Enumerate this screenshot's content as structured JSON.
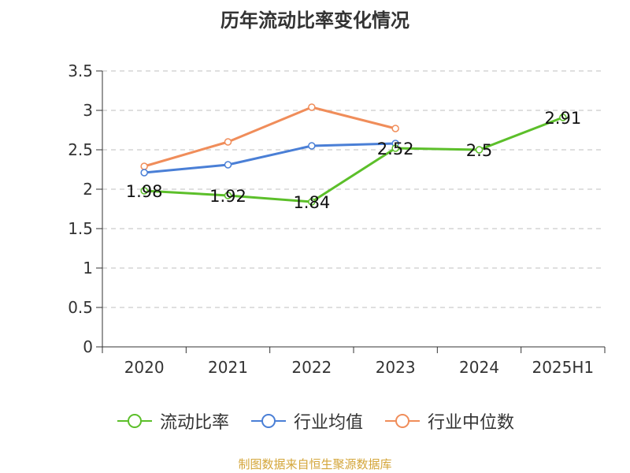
{
  "title": "历年流动比率变化情况",
  "source": "制图数据来自恒生聚源数据库",
  "colors": {
    "current_ratio": "#5cbf2a",
    "industry_avg": "#4a7fd6",
    "industry_median": "#f08d5a",
    "axis": "#333333",
    "grid": "#cccccc"
  },
  "chart_data": {
    "type": "line",
    "title": "历年流动比率变化情况",
    "categories": [
      "2020",
      "2021",
      "2022",
      "2023",
      "2024",
      "2025H1"
    ],
    "ylim": [
      0,
      3.5
    ],
    "yticks": [
      0,
      0.5,
      1,
      1.5,
      2,
      2.5,
      3,
      3.5
    ],
    "ytick_labels": [
      "0",
      "0.5",
      "1",
      "1.5",
      "2",
      "2.5",
      "3",
      "3.5"
    ],
    "grid": true,
    "legend_position": "bottom",
    "series": [
      {
        "name": "流动比率",
        "color": "#5cbf2a",
        "values": [
          1.98,
          1.92,
          1.84,
          2.52,
          2.5,
          2.91
        ],
        "labels": [
          "1.98",
          "1.92",
          "1.84",
          "2.52",
          "2.5",
          "2.91"
        ]
      },
      {
        "name": "行业均值",
        "color": "#4a7fd6",
        "values": [
          2.21,
          2.31,
          2.55,
          2.58,
          null,
          null
        ]
      },
      {
        "name": "行业中位数",
        "color": "#f08d5a",
        "values": [
          2.29,
          2.6,
          3.04,
          2.77,
          null,
          null
        ]
      }
    ]
  }
}
